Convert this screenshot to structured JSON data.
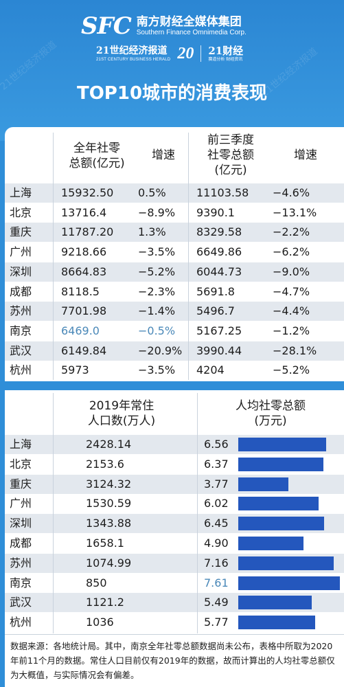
{
  "header": {
    "logo_mark": "SFC",
    "logo_cn": "南方财经全媒体集团",
    "logo_en": "Southern Finance Omnimedia Corp.",
    "herald_cn": "21世纪经济报道",
    "herald_en": "21ST CENTURY BUSINESS HERALD",
    "anniversary": "20",
    "caijing_cn": "21财经",
    "caijing_sub": "赛道分析 财经资讯",
    "title": "TOP10城市的消费表现",
    "watermark": "21世纪经济报道"
  },
  "table1": {
    "headers": [
      "全年社零\n总额(亿元)",
      "增速",
      "前三季度\n社零总额\n(亿元)",
      "增速"
    ],
    "rows": [
      {
        "city": "上海",
        "total": "15932.50",
        "growth": "0.5%",
        "q3_total": "11103.58",
        "q3_growth": "−4.6%"
      },
      {
        "city": "北京",
        "total": "13716.4",
        "growth": "−8.9%",
        "q3_total": "9390.1",
        "q3_growth": "−13.1%"
      },
      {
        "city": "重庆",
        "total": "11787.20",
        "growth": "1.3%",
        "q3_total": "8329.58",
        "q3_growth": "−2.2%"
      },
      {
        "city": "广州",
        "total": "9218.66",
        "growth": "−3.5%",
        "q3_total": "6649.86",
        "q3_growth": "−6.2%"
      },
      {
        "city": "深圳",
        "total": "8664.83",
        "growth": "−5.2%",
        "q3_total": "6044.73",
        "q3_growth": "−9.0%"
      },
      {
        "city": "成都",
        "total": "8118.5",
        "growth": "−2.3%",
        "q3_total": "5691.8",
        "q3_growth": "−4.7%"
      },
      {
        "city": "苏州",
        "total": "7701.98",
        "growth": "−1.4%",
        "q3_total": "5496.7",
        "q3_growth": "−4.4%"
      },
      {
        "city": "南京",
        "total": "6469.0",
        "growth": "−0.5%",
        "q3_total": "5167.25",
        "q3_growth": "−1.2%"
      },
      {
        "city": "武汉",
        "total": "6149.84",
        "growth": "−20.9%",
        "q3_total": "3990.44",
        "q3_growth": "−28.1%"
      },
      {
        "city": "杭州",
        "total": "5973",
        "growth": "−3.5%",
        "q3_total": "4204",
        "q3_growth": "−5.2%"
      }
    ]
  },
  "table2": {
    "headers": [
      "2019年常住\n人口数(万人)",
      "人均社零总额\n(万元)"
    ]
  },
  "chart_data": {
    "type": "bar",
    "title": "",
    "xlabel": "",
    "ylabel": "人均社零总额(万元)",
    "categories": [
      "上海",
      "北京",
      "重庆",
      "广州",
      "深圳",
      "成都",
      "苏州",
      "南京",
      "武汉",
      "杭州"
    ],
    "population": [
      "2428.14",
      "2153.6",
      "3124.32",
      "1530.59",
      "1343.88",
      "1658.1",
      "1074.99",
      "850",
      "1121.2",
      "1036"
    ],
    "values": [
      6.56,
      6.37,
      3.77,
      6.02,
      6.45,
      4.9,
      7.16,
      7.61,
      5.49,
      5.77
    ],
    "value_labels": [
      "6.56",
      "6.37",
      "3.77",
      "6.02",
      "6.45",
      "4.90",
      "7.16",
      "7.61",
      "5.49",
      "5.77"
    ],
    "bar_color": "#2457bd",
    "highlight_color": "#4a88b8",
    "highlight_category": "南京"
  },
  "footnote": "数据来源：各地统计局。其中，南京全年社零总额数据尚未公布，表格中所取为2020年前11个月的数据。常住人口目前仅有2019年的数据，故而计算出的人均社零总额仅为大概值，与实际情况会有偏差。"
}
